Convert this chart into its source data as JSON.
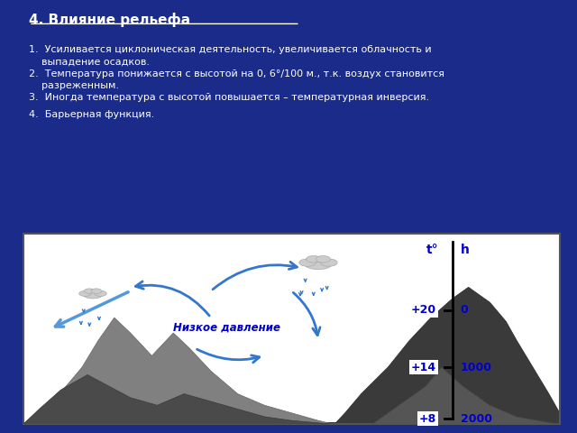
{
  "bg_color": "#1a2b8a",
  "title": "4. Влияние рельефа",
  "title_underline": true,
  "text_color": "#ffffff",
  "bullet_color": "#ffffff",
  "bullets": [
    "Усиливается циклоническая деятельность, увеличивается облачность и\n    выпадение осадков.",
    "Температура понижается с высотой на 0, 6°/100 м., т.к. воздух становится\n    разреженным.",
    "Иногда температура с высотой повышается – температурная инверсия.",
    "Барьерная функция."
  ],
  "diagram_bg": "#ffffff",
  "diagram_border": "#555555",
  "mountain_dark_color": "#404040",
  "mountain_light_color": "#808080",
  "arrow_color": "#3377cc",
  "label_color": "#0000cc",
  "axis_label_t": "t°",
  "axis_label_h": "h",
  "temp_values": [
    "+8",
    "+14",
    "+20"
  ],
  "height_values": [
    "2000",
    "1000",
    "0"
  ],
  "nizk_text": "Низкое давление",
  "font_family": "DejaVu Sans"
}
